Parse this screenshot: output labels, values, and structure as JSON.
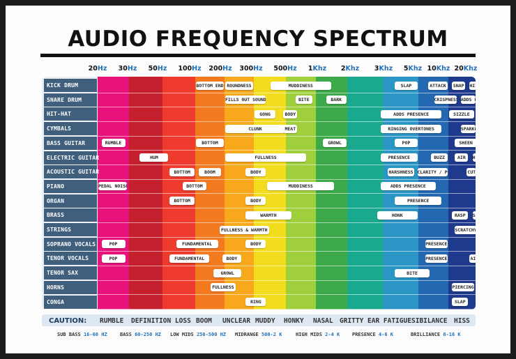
{
  "title": "AUDIO FREQUENCY SPECTRUM",
  "frequencies": [
    {
      "num": "20",
      "unit": "Hz"
    },
    {
      "num": "30",
      "unit": "Hz"
    },
    {
      "num": "50",
      "unit": "Hz"
    },
    {
      "num": "100",
      "unit": "Hz"
    },
    {
      "num": "200",
      "unit": "Hz"
    },
    {
      "num": "300",
      "unit": "Hz"
    },
    {
      "num": "500",
      "unit": "Hz"
    },
    {
      "num": "1",
      "unit": "Khz"
    },
    {
      "num": "2",
      "unit": "Khz"
    },
    {
      "num": "3",
      "unit": "Khz"
    },
    {
      "num": "5",
      "unit": "Khz"
    },
    {
      "num": "10",
      "unit": "Khz"
    },
    {
      "num": "20",
      "unit": "Khz"
    }
  ],
  "band_colors": [
    "#e8137a",
    "#c4202e",
    "#ee3b2d",
    "#f47a20",
    "#f8a81b",
    "#f2dc1e",
    "#9fcf3a",
    "#3daa49",
    "#1aa88e",
    "#2b96c6",
    "#2368b1",
    "#1f3a8c",
    "#6a2a8c",
    "#8d2a8f"
  ],
  "instruments": [
    "KICK DRUM",
    "SNARE DRUM",
    "HIT-HAT",
    "CYMBALS",
    "BASS GUITAR",
    "ELECTRIC GUITAR",
    "ACOUSTIC GUITAR",
    "PIANO",
    "ORGAN",
    "BRASS",
    "STRINGS",
    "SOPRANO VOCALS",
    "TENOR VOCALS",
    "TENOR SAX",
    "HORNS",
    "CONGA"
  ],
  "tags": [
    {
      "row": 0,
      "from": 3,
      "to": 4,
      "label": "BOTTOM END"
    },
    {
      "row": 0,
      "from": 4,
      "to": 5,
      "label": "ROUNDNESS"
    },
    {
      "row": 0,
      "from": 5.5,
      "to": 7.5,
      "label": "MUDDINESS"
    },
    {
      "row": 0,
      "from": 9.3,
      "to": 10,
      "label": "SLAP"
    },
    {
      "row": 0,
      "from": 10.3,
      "to": 11,
      "label": "ATTACK"
    },
    {
      "row": 0,
      "from": 11.1,
      "to": 11.6,
      "label": "SNAP"
    },
    {
      "row": 0,
      "from": 11.7,
      "to": 12.3,
      "label": "HISS"
    },
    {
      "row": 1,
      "from": 4,
      "to": 5.4,
      "label": "FILLS OUT SOUND"
    },
    {
      "row": 1,
      "from": 6.3,
      "to": 6.9,
      "label": "BITE"
    },
    {
      "row": 1,
      "from": 7.3,
      "to": 8,
      "label": "BARK"
    },
    {
      "row": 1,
      "from": 10.5,
      "to": 11.3,
      "label": "CRISPNESS"
    },
    {
      "row": 1,
      "from": 11.4,
      "to": 12.5,
      "label": "ADDS PRESENCE"
    },
    {
      "row": 2,
      "from": 5,
      "to": 5.7,
      "label": "GONG"
    },
    {
      "row": 2,
      "from": 5.9,
      "to": 6.4,
      "label": "BODY"
    },
    {
      "row": 2,
      "from": 8.9,
      "to": 10.8,
      "label": "ADDS PRESENCE"
    },
    {
      "row": 2,
      "from": 11,
      "to": 11.9,
      "label": "SIZZLE"
    },
    {
      "row": 2,
      "from": 12.1,
      "to": 13,
      "label": "BRIGHTNESS"
    },
    {
      "row": 3,
      "from": 4,
      "to": 6,
      "label": "CLUNK"
    },
    {
      "row": 3,
      "from": 5.9,
      "to": 6.4,
      "label": "MEAT"
    },
    {
      "row": 3,
      "from": 8.9,
      "to": 10.8,
      "label": "RINGING OVERTONES"
    },
    {
      "row": 3,
      "from": 11.4,
      "to": 12.6,
      "label": "SPARKLE"
    },
    {
      "row": 4,
      "from": 0.1,
      "to": 0.9,
      "label": "RUMBLE"
    },
    {
      "row": 4,
      "from": 3,
      "to": 4,
      "label": "BOTTOM"
    },
    {
      "row": 4,
      "from": 7.2,
      "to": 8,
      "label": "GROWL"
    },
    {
      "row": 4,
      "from": 9.3,
      "to": 10,
      "label": "POP"
    },
    {
      "row": 4,
      "from": 11.2,
      "to": 12.1,
      "label": "SHEEN"
    },
    {
      "row": 5,
      "from": 1.3,
      "to": 2.2,
      "label": "HUM"
    },
    {
      "row": 5,
      "from": 4,
      "to": 6.7,
      "label": "FULLNESS"
    },
    {
      "row": 5,
      "from": 8.9,
      "to": 10,
      "label": "PRESENCE"
    },
    {
      "row": 5,
      "from": 10.4,
      "to": 11,
      "label": "BUZZ"
    },
    {
      "row": 5,
      "from": 11.2,
      "to": 11.7,
      "label": "AIR"
    },
    {
      "row": 5,
      "from": 11.8,
      "to": 12.3,
      "label": "HISS"
    },
    {
      "row": 6,
      "from": 2.2,
      "to": 3,
      "label": "BOTTOM"
    },
    {
      "row": 6,
      "from": 3.1,
      "to": 3.9,
      "label": "BOOM"
    },
    {
      "row": 6,
      "from": 4.7,
      "to": 5.4,
      "label": "BODY"
    },
    {
      "row": 6,
      "from": 9.1,
      "to": 9.9,
      "label": "HARSHNESS"
    },
    {
      "row": 6,
      "from": 9.95,
      "to": 11,
      "label": "CLARITY / PRESENCE"
    },
    {
      "row": 6,
      "from": 11.6,
      "to": 12.2,
      "label": "CUT"
    },
    {
      "row": 7,
      "from": 0,
      "to": 0.95,
      "label": "PEDAL NOISE"
    },
    {
      "row": 7,
      "from": 2.6,
      "to": 3.4,
      "label": "BOTTOM"
    },
    {
      "row": 7,
      "from": 5.4,
      "to": 7.6,
      "label": "MUDDINESS"
    },
    {
      "row": 7,
      "from": 8.9,
      "to": 10.6,
      "label": "ADDS PRESENCE"
    },
    {
      "row": 7,
      "from": 12.3,
      "to": 13,
      "label": "OVERTONES"
    },
    {
      "row": 8,
      "from": 2.2,
      "to": 3,
      "label": "BOTTOM"
    },
    {
      "row": 8,
      "from": 4.7,
      "to": 5.4,
      "label": "BODY"
    },
    {
      "row": 8,
      "from": 9.3,
      "to": 10.8,
      "label": "PRESENCE"
    },
    {
      "row": 9,
      "from": 4.7,
      "to": 6.2,
      "label": "WARMTH"
    },
    {
      "row": 9,
      "from": 8.8,
      "to": 10,
      "label": "HONK"
    },
    {
      "row": 9,
      "from": 11.1,
      "to": 11.7,
      "label": "RASP"
    },
    {
      "row": 9,
      "from": 11.8,
      "to": 12.5,
      "label": "SKRILL"
    },
    {
      "row": 10,
      "from": 3.8,
      "to": 5.5,
      "label": "FULLNESS & WARMTH"
    },
    {
      "row": 10,
      "from": 11.2,
      "to": 12.1,
      "label": "SCRATCHY"
    },
    {
      "row": 11,
      "from": 0.1,
      "to": 0.9,
      "label": "POP"
    },
    {
      "row": 11,
      "from": 2.4,
      "to": 3.8,
      "label": "FUNDAMENTAL"
    },
    {
      "row": 11,
      "from": 4.7,
      "to": 5.4,
      "label": "BODY"
    },
    {
      "row": 11,
      "from": 10.2,
      "to": 11,
      "label": "PRESENCE"
    },
    {
      "row": 11,
      "from": 12,
      "to": 12.7,
      "label": "AIR"
    },
    {
      "row": 12,
      "from": 0.1,
      "to": 0.9,
      "label": "POP"
    },
    {
      "row": 12,
      "from": 2.2,
      "to": 3.5,
      "label": "FUNDAMENTAL"
    },
    {
      "row": 12,
      "from": 3.9,
      "to": 4.6,
      "label": "BODY"
    },
    {
      "row": 12,
      "from": 10.2,
      "to": 11,
      "label": "PRESENCE"
    },
    {
      "row": 12,
      "from": 11.7,
      "to": 12.4,
      "label": "AIR"
    },
    {
      "row": 13,
      "from": 3.6,
      "to": 4.6,
      "label": "GROWL"
    },
    {
      "row": 13,
      "from": 9.3,
      "to": 10.4,
      "label": "BITE"
    },
    {
      "row": 14,
      "from": 3.5,
      "to": 4.4,
      "label": "FULLNESS"
    },
    {
      "row": 14,
      "from": 11.1,
      "to": 11.9,
      "label": "PIERCING"
    },
    {
      "row": 15,
      "from": 4.7,
      "to": 5.4,
      "label": "RING"
    },
    {
      "row": 15,
      "from": 11.1,
      "to": 11.7,
      "label": "SLAP"
    }
  ],
  "caution": {
    "label": "CAUTION:",
    "words": [
      "RUMBLE",
      "DEFINITION LOSS",
      "BOOM",
      "UNCLEAR",
      "MUDDY",
      "HONKY",
      "NASAL",
      "GRITTY",
      "EAR FATIGUE",
      "SIBILANCE",
      "HISS"
    ]
  },
  "ranges": [
    {
      "name": "SUB BASS",
      "value": "16-60 HZ"
    },
    {
      "name": "BASS",
      "value": "60-250 HZ"
    },
    {
      "name": "LOW MIDS",
      "value": "250-500 HZ"
    },
    {
      "name": "MIDRANGE",
      "value": "500-2 K"
    },
    {
      "name": "HIGH MIDS",
      "value": "2-4 K"
    },
    {
      "name": "PRESENCE",
      "value": "4-6 K"
    },
    {
      "name": "BRILLIANCE",
      "value": "6-16 K"
    }
  ]
}
